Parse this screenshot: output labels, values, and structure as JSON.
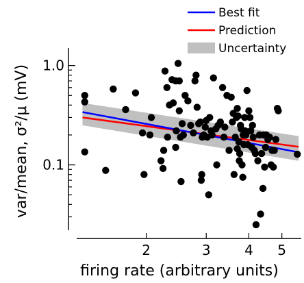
{
  "chart_data": {
    "type": "scatter",
    "xlabel": "firing rate (arbitrary units)",
    "ylabel": "var/mean, σ²/μ (mV)",
    "x_scale": "log",
    "y_scale": "log",
    "xlim": [
      1.25,
      5.7
    ],
    "ylim": [
      0.022,
      1.6
    ],
    "xticks": [
      2,
      3,
      4,
      5
    ],
    "xtick_labels": [
      "2",
      "3",
      "4",
      "5"
    ],
    "yticks": [
      0.1,
      1.0
    ],
    "ytick_labels": [
      "0.1",
      "1.0"
    ],
    "legend": {
      "placement": "top-right",
      "entries": [
        {
          "label": "Best fit",
          "color": "#0000ff",
          "kind": "line"
        },
        {
          "label": "Prediction",
          "color": "#ff0000",
          "kind": "line"
        },
        {
          "label": "Uncertainty",
          "color": "#c0c0c0",
          "kind": "band"
        }
      ]
    },
    "best_fit": {
      "x": [
        1.3,
        5.6
      ],
      "y": [
        0.34,
        0.134
      ]
    },
    "prediction": {
      "x": [
        1.3,
        5.6
      ],
      "y": [
        0.3,
        0.152
      ]
    },
    "uncertainty": {
      "x": [
        1.3,
        5.6
      ],
      "y_low": [
        0.25,
        0.11
      ],
      "y_high": [
        0.42,
        0.195
      ]
    },
    "points": [
      [
        1.32,
        0.5
      ],
      [
        1.32,
        0.43
      ],
      [
        1.32,
        0.135
      ],
      [
        1.52,
        0.088
      ],
      [
        1.6,
        0.58
      ],
      [
        1.74,
        0.36
      ],
      [
        1.86,
        0.53
      ],
      [
        1.95,
        0.21
      ],
      [
        1.97,
        0.08
      ],
      [
        2.05,
        0.2
      ],
      [
        2.07,
        0.3
      ],
      [
        2.21,
        0.11
      ],
      [
        2.24,
        0.092
      ],
      [
        2.25,
        0.14
      ],
      [
        2.27,
        0.88
      ],
      [
        2.3,
        0.6
      ],
      [
        2.31,
        0.19
      ],
      [
        2.34,
        0.4
      ],
      [
        2.38,
        0.72
      ],
      [
        2.4,
        0.42
      ],
      [
        2.44,
        0.7
      ],
      [
        2.44,
        0.15
      ],
      [
        2.45,
        0.22
      ],
      [
        2.48,
        1.05
      ],
      [
        2.5,
        0.7
      ],
      [
        2.5,
        0.35
      ],
      [
        2.52,
        0.19
      ],
      [
        2.53,
        0.068
      ],
      [
        2.55,
        0.26
      ],
      [
        2.57,
        0.2
      ],
      [
        2.6,
        0.5
      ],
      [
        2.65,
        0.44
      ],
      [
        2.7,
        0.25
      ],
      [
        2.75,
        0.21
      ],
      [
        2.78,
        0.7
      ],
      [
        2.8,
        0.8
      ],
      [
        2.82,
        0.38
      ],
      [
        2.85,
        0.26
      ],
      [
        2.88,
        0.27
      ],
      [
        2.9,
        0.07
      ],
      [
        2.91,
        0.08
      ],
      [
        2.92,
        0.19
      ],
      [
        2.95,
        0.2
      ],
      [
        2.98,
        0.24
      ],
      [
        3.0,
        0.28
      ],
      [
        3.02,
        0.19
      ],
      [
        3.05,
        0.05
      ],
      [
        3.07,
        0.3
      ],
      [
        3.1,
        0.22
      ],
      [
        3.12,
        0.2
      ],
      [
        3.15,
        0.75
      ],
      [
        3.2,
        0.23
      ],
      [
        3.22,
        0.1
      ],
      [
        3.25,
        0.25
      ],
      [
        3.3,
        0.27
      ],
      [
        3.35,
        0.6
      ],
      [
        3.38,
        0.19
      ],
      [
        3.4,
        0.24
      ],
      [
        3.45,
        0.5
      ],
      [
        3.5,
        0.14
      ],
      [
        3.55,
        0.48
      ],
      [
        3.58,
        0.27
      ],
      [
        3.6,
        0.33
      ],
      [
        3.62,
        0.08
      ],
      [
        3.65,
        0.19
      ],
      [
        3.68,
        0.3
      ],
      [
        3.7,
        0.37
      ],
      [
        3.7,
        0.145
      ],
      [
        3.72,
        0.31
      ],
      [
        3.74,
        0.17
      ],
      [
        3.75,
        0.11
      ],
      [
        3.76,
        0.13
      ],
      [
        3.78,
        0.25
      ],
      [
        3.8,
        0.23
      ],
      [
        3.82,
        0.1
      ],
      [
        3.84,
        0.075
      ],
      [
        3.85,
        0.2
      ],
      [
        3.87,
        0.16
      ],
      [
        3.89,
        0.3
      ],
      [
        3.9,
        0.22
      ],
      [
        3.92,
        0.2
      ],
      [
        3.95,
        0.56
      ],
      [
        3.97,
        0.16
      ],
      [
        4.0,
        0.35
      ],
      [
        4.03,
        0.3
      ],
      [
        4.05,
        0.22
      ],
      [
        4.08,
        0.15
      ],
      [
        4.1,
        0.25
      ],
      [
        4.12,
        0.19
      ],
      [
        4.15,
        0.14
      ],
      [
        4.18,
        0.13
      ],
      [
        4.2,
        0.025
      ],
      [
        4.25,
        0.11
      ],
      [
        4.3,
        0.2
      ],
      [
        4.33,
        0.032
      ],
      [
        4.36,
        0.13
      ],
      [
        4.4,
        0.058
      ],
      [
        4.42,
        0.2
      ],
      [
        4.45,
        0.095
      ],
      [
        4.48,
        0.15
      ],
      [
        4.5,
        0.2
      ],
      [
        4.55,
        0.18
      ],
      [
        4.6,
        0.19
      ],
      [
        4.65,
        0.1
      ],
      [
        4.68,
        0.14
      ],
      [
        4.72,
        0.095
      ],
      [
        4.75,
        0.14
      ],
      [
        4.8,
        0.18
      ],
      [
        4.85,
        0.37
      ],
      [
        4.88,
        0.35
      ],
      [
        5.55,
        0.128
      ]
    ]
  }
}
